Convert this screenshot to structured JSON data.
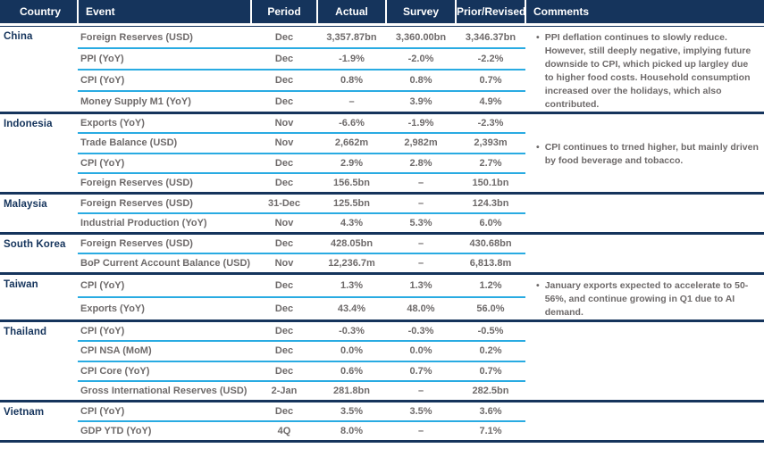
{
  "colors": {
    "navy": "#15345C",
    "cyan": "#29ABE2",
    "text_gray": "#6E6A6A"
  },
  "missing_value_symbol": "–",
  "table": {
    "columns": [
      "Country",
      "Event",
      "Period",
      "Actual",
      "Survey",
      "Prior/Revised",
      "Comments"
    ],
    "groups": [
      {
        "country": "China",
        "comment": "PPI deflation continues to slowly reduce. However, still deeply negative, implying future downside to CPI, which picked up largley due to higher food costs. Household consumption increased over the holidays, which also contributed.",
        "rows": [
          {
            "event": "Foreign Reserves (USD)",
            "period": "Dec",
            "actual": "3,357.87bn",
            "survey": "3,360.00bn",
            "prior": "3,346.37bn"
          },
          {
            "event": "PPI (YoY)",
            "period": "Dec",
            "actual": "-1.9%",
            "survey": "-2.0%",
            "prior": "-2.2%"
          },
          {
            "event": "CPI (YoY)",
            "period": "Dec",
            "actual": "0.8%",
            "survey": "0.8%",
            "prior": "0.7%"
          },
          {
            "event": "Money Supply M1 (YoY)",
            "period": "Dec",
            "actual": "–",
            "survey": "3.9%",
            "prior": "4.9%"
          }
        ]
      },
      {
        "country": "Indonesia",
        "comment": "CPI continues to trned higher, but mainly driven by food beverage and tobacco.",
        "rows": [
          {
            "event": "Exports (YoY)",
            "period": "Nov",
            "actual": "-6.6%",
            "survey": "-1.9%",
            "prior": "-2.3%"
          },
          {
            "event": "Trade Balance (USD)",
            "period": "Nov",
            "actual": "2,662m",
            "survey": "2,982m",
            "prior": "2,393m"
          },
          {
            "event": "CPI (YoY)",
            "period": "Dec",
            "actual": "2.9%",
            "survey": "2.8%",
            "prior": "2.7%"
          },
          {
            "event": "Foreign Reserves (USD)",
            "period": "Dec",
            "actual": "156.5bn",
            "survey": "–",
            "prior": "150.1bn"
          }
        ]
      },
      {
        "country": "Malaysia",
        "comment": "",
        "rows": [
          {
            "event": "Foreign Reserves (USD)",
            "period": "31-Dec",
            "actual": "125.5bn",
            "survey": "–",
            "prior": "124.3bn"
          },
          {
            "event": "Industrial Production (YoY)",
            "period": "Nov",
            "actual": "4.3%",
            "survey": "5.3%",
            "prior": "6.0%"
          }
        ]
      },
      {
        "country": "South Korea",
        "comment": "",
        "rows": [
          {
            "event": "Foreign Reserves (USD)",
            "period": "Dec",
            "actual": "428.05bn",
            "survey": "–",
            "prior": "430.68bn"
          },
          {
            "event": "BoP Current Account Balance (USD)",
            "period": "Nov",
            "actual": "12,236.7m",
            "survey": "–",
            "prior": "6,813.8m"
          }
        ]
      },
      {
        "country": "Taiwan",
        "comment": "January exports expected to accelerate to 50-56%, and continue growing in Q1 due to AI demand.",
        "rows": [
          {
            "event": "CPI (YoY)",
            "period": "Dec",
            "actual": "1.3%",
            "survey": "1.3%",
            "prior": "1.2%"
          },
          {
            "event": "Exports (YoY)",
            "period": "Dec",
            "actual": "43.4%",
            "survey": "48.0%",
            "prior": "56.0%"
          }
        ]
      },
      {
        "country": "Thailand",
        "comment": "",
        "rows": [
          {
            "event": "CPI (YoY)",
            "period": "Dec",
            "actual": "-0.3%",
            "survey": "-0.3%",
            "prior": "-0.5%"
          },
          {
            "event": "CPI NSA (MoM)",
            "period": "Dec",
            "actual": "0.0%",
            "survey": "0.0%",
            "prior": "0.2%"
          },
          {
            "event": "CPI Core (YoY)",
            "period": "Dec",
            "actual": "0.6%",
            "survey": "0.7%",
            "prior": "0.7%"
          },
          {
            "event": "Gross International Reserves (USD)",
            "period": "2-Jan",
            "actual": "281.8bn",
            "survey": "–",
            "prior": "282.5bn"
          }
        ]
      },
      {
        "country": "Vietnam",
        "comment": "",
        "rows": [
          {
            "event": "CPI (YoY)",
            "period": "Dec",
            "actual": "3.5%",
            "survey": "3.5%",
            "prior": "3.6%"
          },
          {
            "event": "GDP YTD (YoY)",
            "period": "4Q",
            "actual": "8.0%",
            "survey": "–",
            "prior": "7.1%"
          }
        ]
      }
    ]
  }
}
